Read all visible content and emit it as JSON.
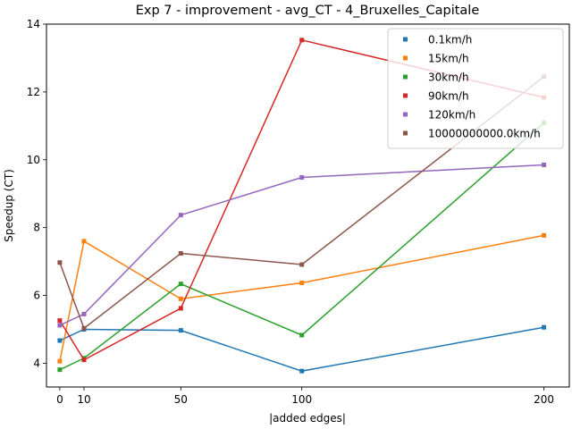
{
  "chart_data": {
    "type": "line",
    "title": "Exp 7 - improvement - avg_CT - 4_Bruxelles_Capitale",
    "xlabel": "|added edges|",
    "ylabel": "Speedup (CT)",
    "xlim": [
      -5.5,
      210.5
    ],
    "ylim": [
      3.3,
      14.0
    ],
    "x_ticks": [
      0,
      10,
      50,
      100,
      200
    ],
    "y_ticks": [
      4,
      6,
      8,
      10,
      12,
      14
    ],
    "x": [
      0,
      10,
      50,
      100,
      200
    ],
    "grid": false,
    "legend_position": "top-right",
    "series": [
      {
        "name": "0.1km/h",
        "color": "#1f77b4",
        "values": [
          4.67,
          5.0,
          4.97,
          3.77,
          5.06
        ]
      },
      {
        "name": "15km/h",
        "color": "#ff7f0e",
        "values": [
          4.06,
          7.6,
          5.9,
          6.37,
          7.77
        ]
      },
      {
        "name": "30km/h",
        "color": "#2ca02c",
        "values": [
          3.81,
          4.15,
          6.34,
          4.83,
          11.09
        ]
      },
      {
        "name": "90km/h",
        "color": "#d62728",
        "values": [
          5.26,
          4.1,
          5.62,
          13.53,
          11.84
        ]
      },
      {
        "name": "120km/h",
        "color": "#9467bd",
        "values": [
          5.12,
          5.45,
          8.37,
          9.48,
          9.85
        ]
      },
      {
        "name": "10000000000.0km/h",
        "color": "#8c564b",
        "values": [
          6.97,
          5.03,
          7.24,
          6.91,
          12.45
        ]
      }
    ]
  }
}
